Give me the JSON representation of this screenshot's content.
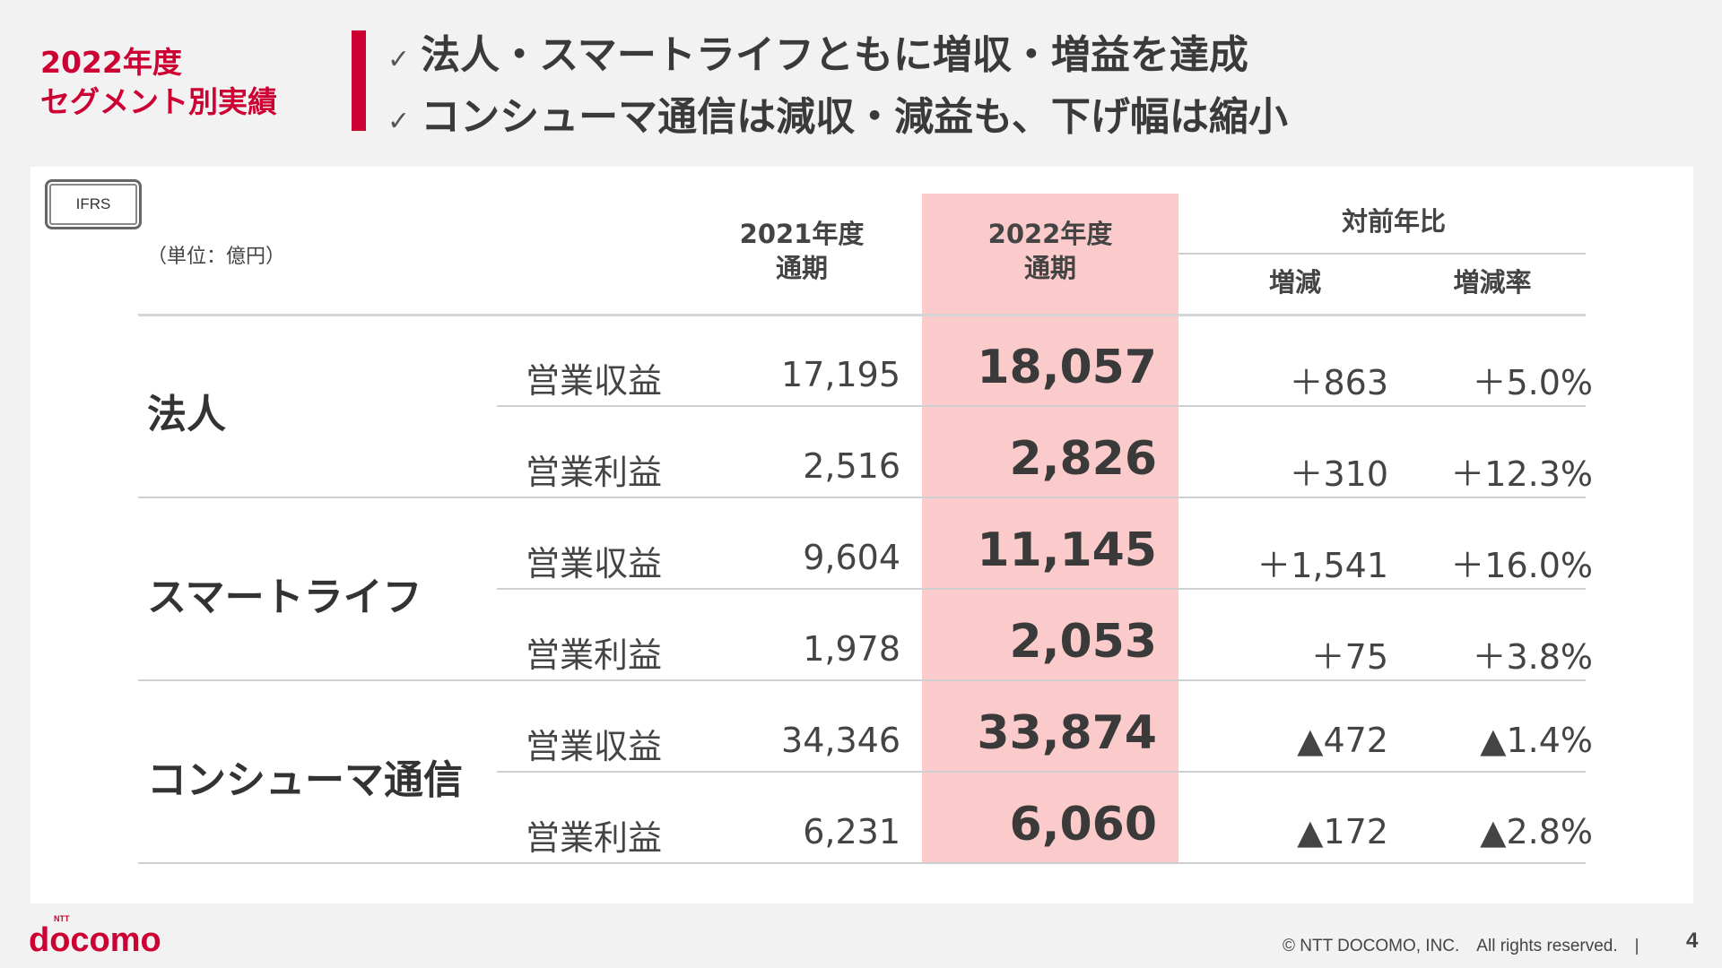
{
  "header": {
    "title_line1": "2022年度",
    "title_line2": "セグメント別実績",
    "bullets": [
      "法人・スマートライフともに増収・増益を達成",
      "コンシューマ通信は減収・減益も、下げ幅は縮小"
    ],
    "check_glyph": "✓"
  },
  "table": {
    "ifrs_label": "IFRS",
    "unit": "（単位：億円）",
    "col_2021": [
      "2021年度",
      "通期"
    ],
    "col_2022": [
      "2022年度",
      "通期"
    ],
    "yoy_header": "対前年比",
    "yoy_change": "増減",
    "yoy_rate": "増減率",
    "segments": [
      {
        "name": "法人",
        "rows": [
          {
            "metric": "営業収益",
            "fy2021": "17,195",
            "fy2022": "18,057",
            "change": "＋863",
            "rate": "＋5.0%"
          },
          {
            "metric": "営業利益",
            "fy2021": "2,516",
            "fy2022": "2,826",
            "change": "＋310",
            "rate": "＋12.3%"
          }
        ]
      },
      {
        "name": "スマートライフ",
        "rows": [
          {
            "metric": "営業収益",
            "fy2021": "9,604",
            "fy2022": "11,145",
            "change": "＋1,541",
            "rate": "＋16.0%"
          },
          {
            "metric": "営業利益",
            "fy2021": "1,978",
            "fy2022": "2,053",
            "change": "＋75",
            "rate": "＋3.8%"
          }
        ]
      },
      {
        "name": "コンシューマ通信",
        "rows": [
          {
            "metric": "営業収益",
            "fy2021": "34,346",
            "fy2022": "33,874",
            "change": "▲472",
            "rate": "▲1.4%"
          },
          {
            "metric": "営業利益",
            "fy2021": "6,231",
            "fy2022": "6,060",
            "change": "▲172",
            "rate": "▲2.8%"
          }
        ]
      }
    ]
  },
  "footer": {
    "logo": "docomo",
    "logo_small": "NTT",
    "copyright": "© NTT DOCOMO, INC.　All rights reserved.　|",
    "page": "4"
  },
  "colors": {
    "accent": "#cc0033",
    "highlight": "#fbcaca"
  }
}
